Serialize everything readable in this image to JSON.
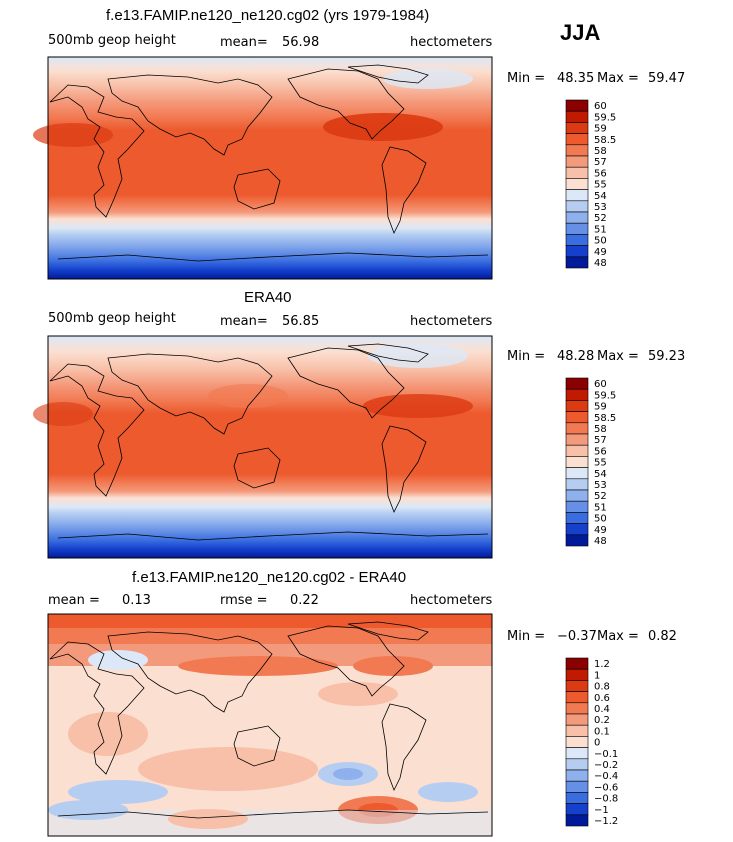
{
  "season": "JJA",
  "chart_data": [
    {
      "type": "heatmap",
      "title": "f.e13.FAMIP.ne120_ne120.cg02 (yrs 1979-1984)",
      "field": "500mb geop height",
      "mean_label": "mean=",
      "mean": "56.98",
      "units": "hectometers",
      "min_label": "Min =",
      "min": "48.35",
      "max_label": "Max =",
      "max": "59.47",
      "colorbar_levels": [
        "60",
        "59.5",
        "59",
        "58.5",
        "58",
        "57",
        "56",
        "55",
        "54",
        "53",
        "52",
        "51",
        "50",
        "49",
        "48"
      ],
      "colorbar_colors": [
        "#8b0000",
        "#c01a00",
        "#dc3a12",
        "#ec5a2e",
        "#f27a52",
        "#f49a7c",
        "#f8c0a8",
        "#fbe0d2",
        "#dce8f7",
        "#b4cdf1",
        "#8eb0ec",
        "#6690e6",
        "#3a6ee0",
        "#1440cc",
        "#001a9a"
      ]
    },
    {
      "type": "heatmap",
      "title": "ERA40",
      "field": "500mb geop height",
      "mean_label": "mean=",
      "mean": "56.85",
      "units": "hectometers",
      "min_label": "Min =",
      "min": "48.28",
      "max_label": "Max =",
      "max": "59.23",
      "colorbar_levels": [
        "60",
        "59.5",
        "59",
        "58.5",
        "58",
        "57",
        "56",
        "55",
        "54",
        "53",
        "52",
        "51",
        "50",
        "49",
        "48"
      ],
      "colorbar_colors": [
        "#8b0000",
        "#c01a00",
        "#dc3a12",
        "#ec5a2e",
        "#f27a52",
        "#f49a7c",
        "#f8c0a8",
        "#fbe0d2",
        "#dce8f7",
        "#b4cdf1",
        "#8eb0ec",
        "#6690e6",
        "#3a6ee0",
        "#1440cc",
        "#001a9a"
      ]
    },
    {
      "type": "heatmap",
      "title": "f.e13.FAMIP.ne120_ne120.cg02 - ERA40",
      "mean_label": "mean =",
      "mean": "0.13",
      "rmse_label": "rmse =",
      "rmse": "0.22",
      "units": "hectometers",
      "min_label": "Min =",
      "min": "−0.37",
      "max_label": "Max =",
      "max": "0.82",
      "colorbar_levels": [
        "1.2",
        "1",
        "0.8",
        "0.6",
        "0.4",
        "0.2",
        "0.1",
        "0",
        "−0.1",
        "−0.2",
        "−0.4",
        "−0.6",
        "−0.8",
        "−1",
        "−1.2"
      ],
      "colorbar_colors": [
        "#8b0000",
        "#c01a00",
        "#dc3a12",
        "#ec5a2e",
        "#f27a52",
        "#f49a7c",
        "#f8c0a8",
        "#fbe0d2",
        "#dce8f7",
        "#b4cdf1",
        "#8eb0ec",
        "#6690e6",
        "#3a6ee0",
        "#1440cc",
        "#001a9a"
      ]
    }
  ]
}
